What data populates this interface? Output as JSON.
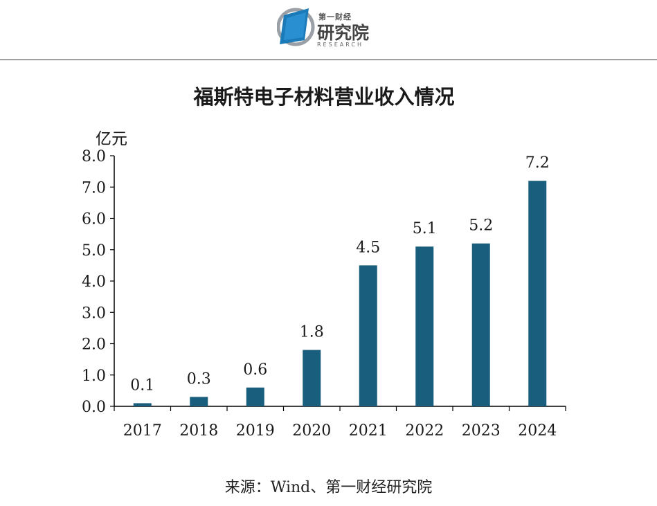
{
  "header": {
    "logo_top": "第一财经",
    "logo_main": "研究院",
    "logo_en": "RESEARCH",
    "logo_color": "#1b7ab8"
  },
  "chart_data": {
    "type": "bar",
    "title": "福斯特电子材料营业收入情况",
    "unit_label": "亿元",
    "categories": [
      "2017",
      "2018",
      "2019",
      "2020",
      "2021",
      "2022",
      "2023",
      "2024"
    ],
    "values": [
      0.1,
      0.3,
      0.6,
      1.8,
      4.5,
      5.1,
      5.2,
      7.2
    ],
    "value_labels": [
      "0.1",
      "0.3",
      "0.6",
      "1.8",
      "4.5",
      "5.1",
      "5.2",
      "7.2"
    ],
    "yticks": [
      "0.0",
      "1.0",
      "2.0",
      "3.0",
      "4.0",
      "5.0",
      "6.0",
      "7.0",
      "8.0"
    ],
    "ylim": [
      0,
      8
    ],
    "bar_color": "#1a5e7e",
    "grid": false,
    "legend": "none"
  },
  "footer": {
    "source": "来源：Wind、第一财经研究院"
  }
}
